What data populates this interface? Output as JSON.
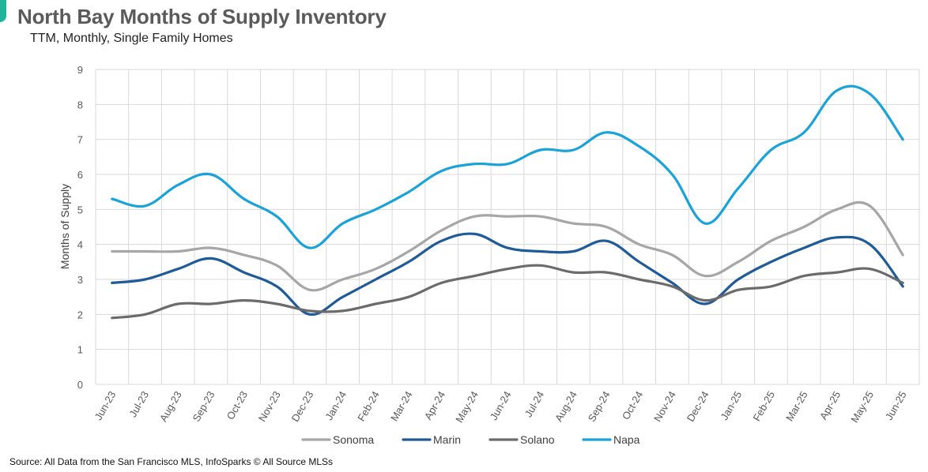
{
  "title": "North Bay Months of Supply Inventory",
  "subtitle": "TTM, Monthly, Single Family Homes",
  "source": "Source: All Data from the San Francisco MLS, InfoSparks © All Source MLSs",
  "chart_data": {
    "type": "line",
    "title": "North Bay Months of Supply Inventory",
    "subtitle": "TTM, Monthly, Single Family Homes",
    "xlabel": "",
    "ylabel": "Months of Supply",
    "ylim": [
      0,
      9
    ],
    "yticks": [
      0,
      1,
      2,
      3,
      4,
      5,
      6,
      7,
      8,
      9
    ],
    "grid": true,
    "legend_position": "bottom",
    "categories": [
      "Jun-23",
      "Jul-23",
      "Aug-23",
      "Sep-23",
      "Oct-23",
      "Nov-23",
      "Dec-23",
      "Jan-24",
      "Feb-24",
      "Mar-24",
      "Apr-24",
      "May-24",
      "Jun-24",
      "Jul-24",
      "Aug-24",
      "Sep-24",
      "Oct-24",
      "Nov-24",
      "Dec-24",
      "Jan-25",
      "Feb-25",
      "Mar-25",
      "Apr-25",
      "May-25",
      "Jun-25"
    ],
    "series": [
      {
        "name": "Sonoma",
        "color": "#a6a6a6",
        "values": [
          3.8,
          3.8,
          3.8,
          3.9,
          3.7,
          3.4,
          2.7,
          3.0,
          3.3,
          3.8,
          4.4,
          4.8,
          4.8,
          4.8,
          4.6,
          4.5,
          4.0,
          3.7,
          3.1,
          3.5,
          4.1,
          4.5,
          5.0,
          5.1,
          3.7
        ]
      },
      {
        "name": "Marin",
        "color": "#1f5b99",
        "values": [
          2.9,
          3.0,
          3.3,
          3.6,
          3.2,
          2.8,
          2.0,
          2.5,
          3.0,
          3.5,
          4.1,
          4.3,
          3.9,
          3.8,
          3.8,
          4.1,
          3.5,
          2.9,
          2.3,
          3.0,
          3.5,
          3.9,
          4.2,
          4.0,
          2.8
        ]
      },
      {
        "name": "Solano",
        "color": "#6b6b6b",
        "values": [
          1.9,
          2.0,
          2.3,
          2.3,
          2.4,
          2.3,
          2.1,
          2.1,
          2.3,
          2.5,
          2.9,
          3.1,
          3.3,
          3.4,
          3.2,
          3.2,
          3.0,
          2.8,
          2.4,
          2.7,
          2.8,
          3.1,
          3.2,
          3.3,
          2.9
        ]
      },
      {
        "name": "Napa",
        "color": "#1aa3d9",
        "values": [
          5.3,
          5.1,
          5.7,
          6.0,
          5.3,
          4.8,
          3.9,
          4.6,
          5.0,
          5.5,
          6.1,
          6.3,
          6.3,
          6.7,
          6.7,
          7.2,
          6.8,
          6.0,
          4.6,
          5.6,
          6.7,
          7.2,
          8.4,
          8.3,
          7.0
        ]
      }
    ]
  }
}
